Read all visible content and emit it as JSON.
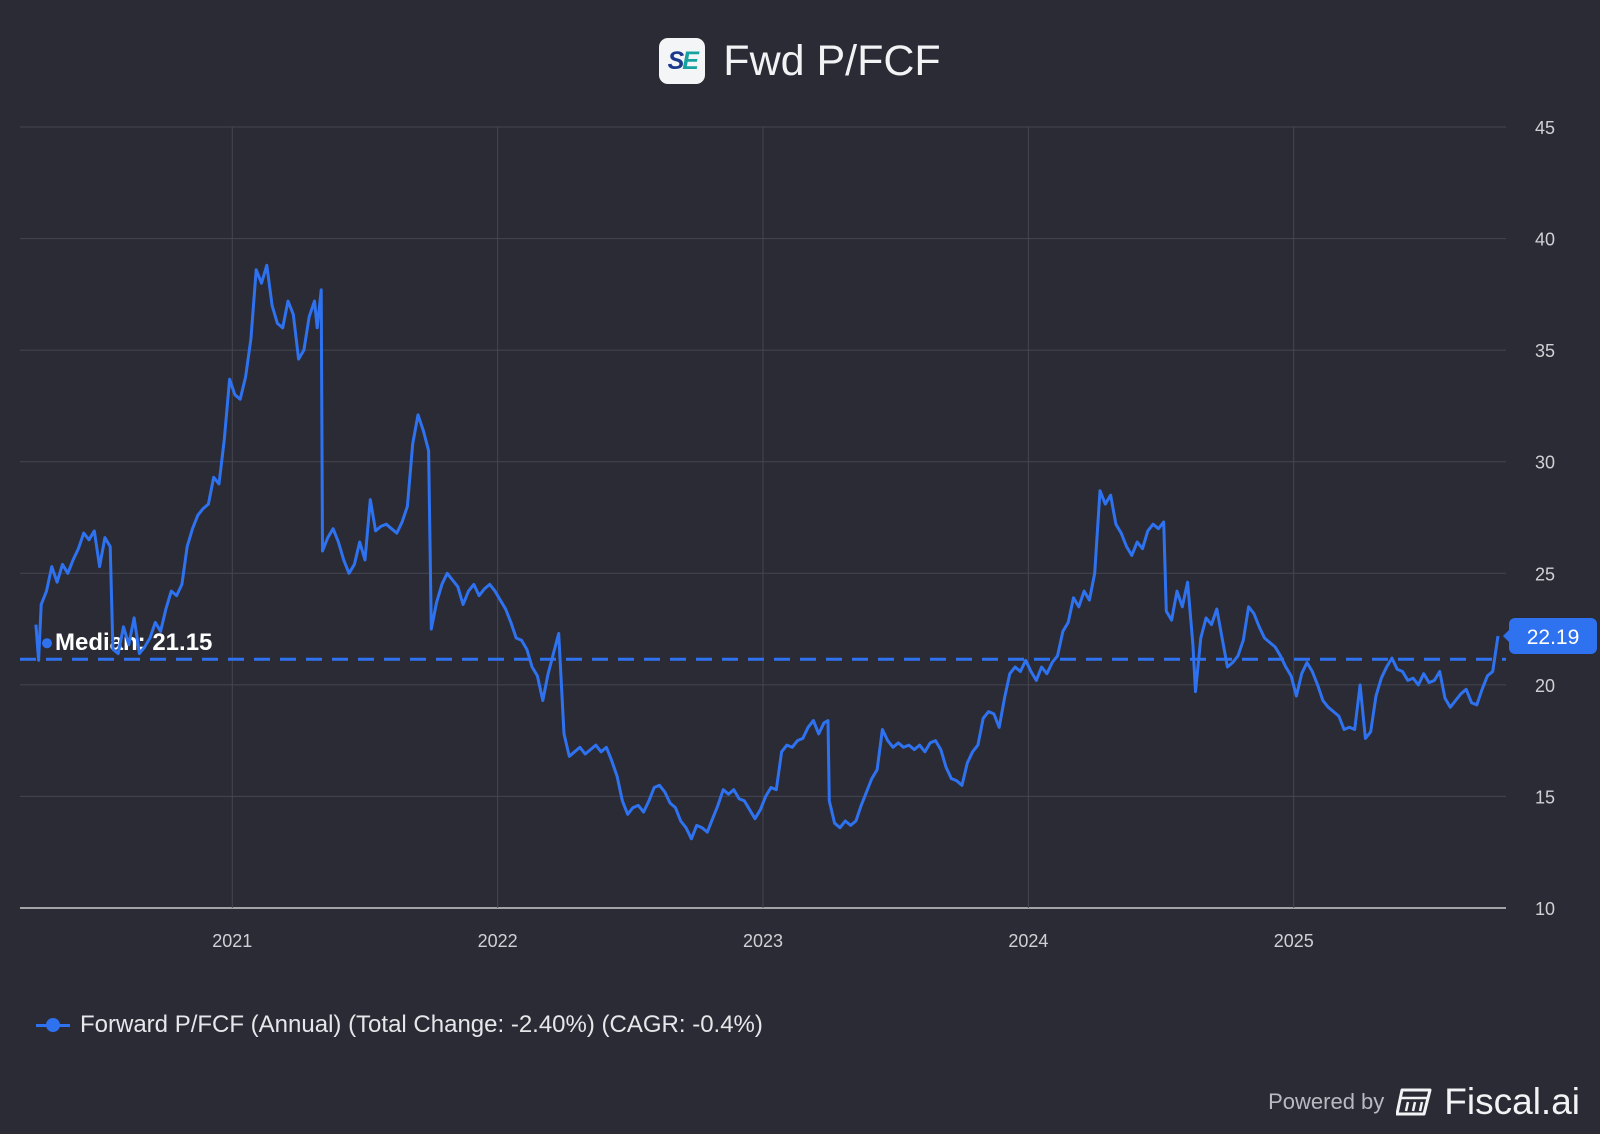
{
  "header": {
    "logo_text": "SE",
    "title": "Fwd P/FCF"
  },
  "legend": {
    "label": "Forward P/FCF (Annual) (Total Change: -2.40%) (CAGR: -0.4%)"
  },
  "footer": {
    "powered_by": "Powered by",
    "brand": "Fiscal.ai"
  },
  "colors": {
    "background": "#2a2b34",
    "series": "#2f72f0",
    "grid": "#454651",
    "text": "#e6e7ea"
  },
  "chart_data": {
    "type": "line",
    "title": "Fwd P/FCF",
    "xlabel": "",
    "ylabel": "",
    "x_range": [
      2020.2,
      2025.8
    ],
    "ylim": [
      10,
      45
    ],
    "y_ticks": [
      10,
      15,
      20,
      25,
      30,
      35,
      40,
      45
    ],
    "x_ticks": [
      {
        "label": "2021",
        "value": 2021.0
      },
      {
        "label": "2022",
        "value": 2022.0
      },
      {
        "label": "2023",
        "value": 2023.0
      },
      {
        "label": "2024",
        "value": 2024.0
      },
      {
        "label": "2025",
        "value": 2025.0
      }
    ],
    "y_axis_position": "right",
    "grid": true,
    "legend_position": "bottom-left",
    "median": {
      "label": "Median: 21.15",
      "value": 21.15
    },
    "last_value": {
      "label": "22.19",
      "value": 22.19
    },
    "series": [
      {
        "name": "Forward P/FCF (Annual) (Total Change: -2.40%) (CAGR: -0.4%)",
        "points": [
          [
            2020.26,
            22.7
          ],
          [
            2020.27,
            21.1
          ],
          [
            2020.28,
            23.6
          ],
          [
            2020.3,
            24.2
          ],
          [
            2020.32,
            25.3
          ],
          [
            2020.34,
            24.6
          ],
          [
            2020.36,
            25.4
          ],
          [
            2020.38,
            25.0
          ],
          [
            2020.4,
            25.6
          ],
          [
            2020.42,
            26.1
          ],
          [
            2020.44,
            26.8
          ],
          [
            2020.46,
            26.5
          ],
          [
            2020.48,
            26.9
          ],
          [
            2020.5,
            25.3
          ],
          [
            2020.52,
            26.6
          ],
          [
            2020.54,
            26.2
          ],
          [
            2020.55,
            21.6
          ],
          [
            2020.57,
            21.4
          ],
          [
            2020.59,
            22.6
          ],
          [
            2020.61,
            21.8
          ],
          [
            2020.63,
            23.0
          ],
          [
            2020.65,
            21.4
          ],
          [
            2020.67,
            21.7
          ],
          [
            2020.69,
            22.1
          ],
          [
            2020.71,
            22.8
          ],
          [
            2020.73,
            22.4
          ],
          [
            2020.75,
            23.4
          ],
          [
            2020.77,
            24.2
          ],
          [
            2020.79,
            24.0
          ],
          [
            2020.81,
            24.5
          ],
          [
            2020.83,
            26.2
          ],
          [
            2020.85,
            27.0
          ],
          [
            2020.87,
            27.6
          ],
          [
            2020.89,
            27.9
          ],
          [
            2020.91,
            28.1
          ],
          [
            2020.93,
            29.3
          ],
          [
            2020.95,
            29.0
          ],
          [
            2020.97,
            31.0
          ],
          [
            2020.99,
            33.7
          ],
          [
            2021.01,
            33.0
          ],
          [
            2021.03,
            32.8
          ],
          [
            2021.05,
            33.8
          ],
          [
            2021.07,
            35.5
          ],
          [
            2021.09,
            38.6
          ],
          [
            2021.11,
            38.0
          ],
          [
            2021.13,
            38.8
          ],
          [
            2021.15,
            37.0
          ],
          [
            2021.17,
            36.2
          ],
          [
            2021.19,
            36.0
          ],
          [
            2021.21,
            37.2
          ],
          [
            2021.23,
            36.6
          ],
          [
            2021.25,
            34.6
          ],
          [
            2021.27,
            35.0
          ],
          [
            2021.29,
            36.5
          ],
          [
            2021.31,
            37.2
          ],
          [
            2021.32,
            36.0
          ],
          [
            2021.335,
            37.7
          ],
          [
            2021.34,
            26.0
          ],
          [
            2021.36,
            26.6
          ],
          [
            2021.38,
            27.0
          ],
          [
            2021.4,
            26.4
          ],
          [
            2021.42,
            25.6
          ],
          [
            2021.44,
            25.0
          ],
          [
            2021.46,
            25.4
          ],
          [
            2021.48,
            26.4
          ],
          [
            2021.5,
            25.6
          ],
          [
            2021.52,
            28.3
          ],
          [
            2021.54,
            26.9
          ],
          [
            2021.56,
            27.1
          ],
          [
            2021.58,
            27.2
          ],
          [
            2021.6,
            27.0
          ],
          [
            2021.62,
            26.8
          ],
          [
            2021.64,
            27.3
          ],
          [
            2021.66,
            28.0
          ],
          [
            2021.68,
            30.8
          ],
          [
            2021.7,
            32.1
          ],
          [
            2021.72,
            31.4
          ],
          [
            2021.74,
            30.5
          ],
          [
            2021.75,
            22.5
          ],
          [
            2021.77,
            23.7
          ],
          [
            2021.79,
            24.5
          ],
          [
            2021.81,
            25.0
          ],
          [
            2021.83,
            24.7
          ],
          [
            2021.85,
            24.4
          ],
          [
            2021.87,
            23.6
          ],
          [
            2021.89,
            24.2
          ],
          [
            2021.91,
            24.5
          ],
          [
            2021.93,
            24.0
          ],
          [
            2021.95,
            24.3
          ],
          [
            2021.97,
            24.5
          ],
          [
            2021.99,
            24.2
          ],
          [
            2022.01,
            23.8
          ],
          [
            2022.03,
            23.4
          ],
          [
            2022.05,
            22.8
          ],
          [
            2022.07,
            22.1
          ],
          [
            2022.09,
            22.0
          ],
          [
            2022.11,
            21.6
          ],
          [
            2022.13,
            20.8
          ],
          [
            2022.15,
            20.4
          ],
          [
            2022.17,
            19.3
          ],
          [
            2022.19,
            20.5
          ],
          [
            2022.21,
            21.4
          ],
          [
            2022.23,
            22.3
          ],
          [
            2022.25,
            17.8
          ],
          [
            2022.27,
            16.8
          ],
          [
            2022.29,
            17.0
          ],
          [
            2022.31,
            17.2
          ],
          [
            2022.33,
            16.9
          ],
          [
            2022.35,
            17.1
          ],
          [
            2022.37,
            17.3
          ],
          [
            2022.39,
            17.0
          ],
          [
            2022.41,
            17.2
          ],
          [
            2022.43,
            16.6
          ],
          [
            2022.45,
            15.9
          ],
          [
            2022.47,
            14.8
          ],
          [
            2022.49,
            14.2
          ],
          [
            2022.51,
            14.5
          ],
          [
            2022.53,
            14.6
          ],
          [
            2022.55,
            14.3
          ],
          [
            2022.57,
            14.8
          ],
          [
            2022.59,
            15.4
          ],
          [
            2022.61,
            15.5
          ],
          [
            2022.63,
            15.2
          ],
          [
            2022.65,
            14.7
          ],
          [
            2022.67,
            14.5
          ],
          [
            2022.69,
            13.9
          ],
          [
            2022.71,
            13.6
          ],
          [
            2022.73,
            13.1
          ],
          [
            2022.75,
            13.7
          ],
          [
            2022.77,
            13.6
          ],
          [
            2022.79,
            13.4
          ],
          [
            2022.81,
            14.0
          ],
          [
            2022.83,
            14.6
          ],
          [
            2022.85,
            15.3
          ],
          [
            2022.87,
            15.1
          ],
          [
            2022.89,
            15.3
          ],
          [
            2022.91,
            14.9
          ],
          [
            2022.93,
            14.8
          ],
          [
            2022.95,
            14.4
          ],
          [
            2022.97,
            14.0
          ],
          [
            2022.99,
            14.4
          ],
          [
            2023.01,
            15.0
          ],
          [
            2023.03,
            15.4
          ],
          [
            2023.05,
            15.3
          ],
          [
            2023.07,
            17.0
          ],
          [
            2023.09,
            17.3
          ],
          [
            2023.11,
            17.2
          ],
          [
            2023.13,
            17.5
          ],
          [
            2023.15,
            17.6
          ],
          [
            2023.17,
            18.1
          ],
          [
            2023.19,
            18.4
          ],
          [
            2023.21,
            17.8
          ],
          [
            2023.23,
            18.3
          ],
          [
            2023.245,
            18.4
          ],
          [
            2023.25,
            14.8
          ],
          [
            2023.27,
            13.8
          ],
          [
            2023.29,
            13.6
          ],
          [
            2023.31,
            13.9
          ],
          [
            2023.33,
            13.7
          ],
          [
            2023.35,
            13.9
          ],
          [
            2023.37,
            14.6
          ],
          [
            2023.39,
            15.2
          ],
          [
            2023.41,
            15.8
          ],
          [
            2023.43,
            16.2
          ],
          [
            2023.45,
            18.0
          ],
          [
            2023.47,
            17.5
          ],
          [
            2023.49,
            17.2
          ],
          [
            2023.51,
            17.4
          ],
          [
            2023.53,
            17.2
          ],
          [
            2023.55,
            17.3
          ],
          [
            2023.57,
            17.1
          ],
          [
            2023.59,
            17.3
          ],
          [
            2023.61,
            17.0
          ],
          [
            2023.63,
            17.4
          ],
          [
            2023.65,
            17.5
          ],
          [
            2023.67,
            17.1
          ],
          [
            2023.69,
            16.3
          ],
          [
            2023.71,
            15.8
          ],
          [
            2023.73,
            15.7
          ],
          [
            2023.75,
            15.5
          ],
          [
            2023.77,
            16.5
          ],
          [
            2023.79,
            17.0
          ],
          [
            2023.81,
            17.3
          ],
          [
            2023.83,
            18.5
          ],
          [
            2023.85,
            18.8
          ],
          [
            2023.87,
            18.7
          ],
          [
            2023.89,
            18.1
          ],
          [
            2023.91,
            19.4
          ],
          [
            2023.93,
            20.5
          ],
          [
            2023.95,
            20.8
          ],
          [
            2023.97,
            20.6
          ],
          [
            2023.99,
            21.1
          ],
          [
            2024.01,
            20.6
          ],
          [
            2024.03,
            20.2
          ],
          [
            2024.05,
            20.8
          ],
          [
            2024.07,
            20.5
          ],
          [
            2024.09,
            21.0
          ],
          [
            2024.11,
            21.3
          ],
          [
            2024.13,
            22.4
          ],
          [
            2024.15,
            22.8
          ],
          [
            2024.17,
            23.9
          ],
          [
            2024.19,
            23.5
          ],
          [
            2024.21,
            24.2
          ],
          [
            2024.23,
            23.8
          ],
          [
            2024.25,
            25.0
          ],
          [
            2024.27,
            28.7
          ],
          [
            2024.29,
            28.1
          ],
          [
            2024.31,
            28.5
          ],
          [
            2024.33,
            27.2
          ],
          [
            2024.35,
            26.8
          ],
          [
            2024.37,
            26.2
          ],
          [
            2024.39,
            25.8
          ],
          [
            2024.41,
            26.4
          ],
          [
            2024.43,
            26.1
          ],
          [
            2024.45,
            26.9
          ],
          [
            2024.47,
            27.2
          ],
          [
            2024.49,
            27.0
          ],
          [
            2024.51,
            27.3
          ],
          [
            2024.52,
            23.3
          ],
          [
            2024.54,
            22.9
          ],
          [
            2024.56,
            24.2
          ],
          [
            2024.58,
            23.5
          ],
          [
            2024.6,
            24.6
          ],
          [
            2024.62,
            21.8
          ],
          [
            2024.63,
            19.7
          ],
          [
            2024.65,
            22.1
          ],
          [
            2024.67,
            23.0
          ],
          [
            2024.69,
            22.7
          ],
          [
            2024.71,
            23.4
          ],
          [
            2024.73,
            22.1
          ],
          [
            2024.75,
            20.8
          ],
          [
            2024.77,
            21.0
          ],
          [
            2024.79,
            21.3
          ],
          [
            2024.81,
            22.0
          ],
          [
            2024.83,
            23.5
          ],
          [
            2024.85,
            23.2
          ],
          [
            2024.87,
            22.6
          ],
          [
            2024.89,
            22.1
          ],
          [
            2024.91,
            21.9
          ],
          [
            2024.93,
            21.7
          ],
          [
            2024.95,
            21.3
          ],
          [
            2024.97,
            20.8
          ],
          [
            2024.99,
            20.4
          ],
          [
            2025.01,
            19.5
          ],
          [
            2025.03,
            20.5
          ],
          [
            2025.05,
            21.0
          ],
          [
            2025.07,
            20.6
          ],
          [
            2025.09,
            20.0
          ],
          [
            2025.11,
            19.3
          ],
          [
            2025.13,
            19.0
          ],
          [
            2025.15,
            18.8
          ],
          [
            2025.17,
            18.6
          ],
          [
            2025.19,
            18.0
          ],
          [
            2025.21,
            18.1
          ],
          [
            2025.23,
            18.0
          ],
          [
            2025.25,
            20.0
          ],
          [
            2025.27,
            17.6
          ],
          [
            2025.29,
            17.9
          ],
          [
            2025.31,
            19.5
          ],
          [
            2025.33,
            20.3
          ],
          [
            2025.35,
            20.8
          ],
          [
            2025.37,
            21.2
          ],
          [
            2025.39,
            20.7
          ],
          [
            2025.41,
            20.6
          ],
          [
            2025.43,
            20.2
          ],
          [
            2025.45,
            20.3
          ],
          [
            2025.47,
            20.0
          ],
          [
            2025.49,
            20.5
          ],
          [
            2025.51,
            20.1
          ],
          [
            2025.53,
            20.2
          ],
          [
            2025.55,
            20.6
          ],
          [
            2025.57,
            19.4
          ],
          [
            2025.59,
            19.0
          ],
          [
            2025.61,
            19.3
          ],
          [
            2025.63,
            19.6
          ],
          [
            2025.65,
            19.8
          ],
          [
            2025.67,
            19.2
          ],
          [
            2025.69,
            19.1
          ],
          [
            2025.71,
            19.8
          ],
          [
            2025.73,
            20.4
          ],
          [
            2025.75,
            20.6
          ],
          [
            2025.77,
            22.19
          ]
        ]
      }
    ]
  }
}
